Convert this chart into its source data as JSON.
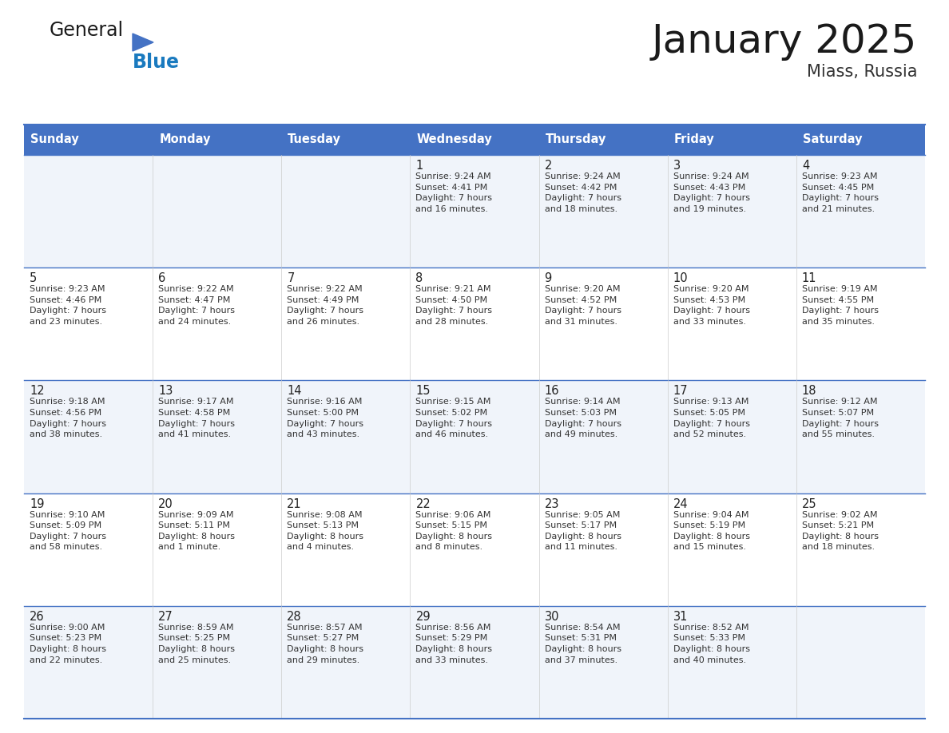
{
  "title": "January 2025",
  "subtitle": "Miass, Russia",
  "header_color": "#4472C4",
  "header_text_color": "#FFFFFF",
  "border_color": "#4472C4",
  "days_of_week": [
    "Sunday",
    "Monday",
    "Tuesday",
    "Wednesday",
    "Thursday",
    "Friday",
    "Saturday"
  ],
  "weeks": [
    [
      {
        "day": "",
        "info": ""
      },
      {
        "day": "",
        "info": ""
      },
      {
        "day": "",
        "info": ""
      },
      {
        "day": "1",
        "info": "Sunrise: 9:24 AM\nSunset: 4:41 PM\nDaylight: 7 hours\nand 16 minutes."
      },
      {
        "day": "2",
        "info": "Sunrise: 9:24 AM\nSunset: 4:42 PM\nDaylight: 7 hours\nand 18 minutes."
      },
      {
        "day": "3",
        "info": "Sunrise: 9:24 AM\nSunset: 4:43 PM\nDaylight: 7 hours\nand 19 minutes."
      },
      {
        "day": "4",
        "info": "Sunrise: 9:23 AM\nSunset: 4:45 PM\nDaylight: 7 hours\nand 21 minutes."
      }
    ],
    [
      {
        "day": "5",
        "info": "Sunrise: 9:23 AM\nSunset: 4:46 PM\nDaylight: 7 hours\nand 23 minutes."
      },
      {
        "day": "6",
        "info": "Sunrise: 9:22 AM\nSunset: 4:47 PM\nDaylight: 7 hours\nand 24 minutes."
      },
      {
        "day": "7",
        "info": "Sunrise: 9:22 AM\nSunset: 4:49 PM\nDaylight: 7 hours\nand 26 minutes."
      },
      {
        "day": "8",
        "info": "Sunrise: 9:21 AM\nSunset: 4:50 PM\nDaylight: 7 hours\nand 28 minutes."
      },
      {
        "day": "9",
        "info": "Sunrise: 9:20 AM\nSunset: 4:52 PM\nDaylight: 7 hours\nand 31 minutes."
      },
      {
        "day": "10",
        "info": "Sunrise: 9:20 AM\nSunset: 4:53 PM\nDaylight: 7 hours\nand 33 minutes."
      },
      {
        "day": "11",
        "info": "Sunrise: 9:19 AM\nSunset: 4:55 PM\nDaylight: 7 hours\nand 35 minutes."
      }
    ],
    [
      {
        "day": "12",
        "info": "Sunrise: 9:18 AM\nSunset: 4:56 PM\nDaylight: 7 hours\nand 38 minutes."
      },
      {
        "day": "13",
        "info": "Sunrise: 9:17 AM\nSunset: 4:58 PM\nDaylight: 7 hours\nand 41 minutes."
      },
      {
        "day": "14",
        "info": "Sunrise: 9:16 AM\nSunset: 5:00 PM\nDaylight: 7 hours\nand 43 minutes."
      },
      {
        "day": "15",
        "info": "Sunrise: 9:15 AM\nSunset: 5:02 PM\nDaylight: 7 hours\nand 46 minutes."
      },
      {
        "day": "16",
        "info": "Sunrise: 9:14 AM\nSunset: 5:03 PM\nDaylight: 7 hours\nand 49 minutes."
      },
      {
        "day": "17",
        "info": "Sunrise: 9:13 AM\nSunset: 5:05 PM\nDaylight: 7 hours\nand 52 minutes."
      },
      {
        "day": "18",
        "info": "Sunrise: 9:12 AM\nSunset: 5:07 PM\nDaylight: 7 hours\nand 55 minutes."
      }
    ],
    [
      {
        "day": "19",
        "info": "Sunrise: 9:10 AM\nSunset: 5:09 PM\nDaylight: 7 hours\nand 58 minutes."
      },
      {
        "day": "20",
        "info": "Sunrise: 9:09 AM\nSunset: 5:11 PM\nDaylight: 8 hours\nand 1 minute."
      },
      {
        "day": "21",
        "info": "Sunrise: 9:08 AM\nSunset: 5:13 PM\nDaylight: 8 hours\nand 4 minutes."
      },
      {
        "day": "22",
        "info": "Sunrise: 9:06 AM\nSunset: 5:15 PM\nDaylight: 8 hours\nand 8 minutes."
      },
      {
        "day": "23",
        "info": "Sunrise: 9:05 AM\nSunset: 5:17 PM\nDaylight: 8 hours\nand 11 minutes."
      },
      {
        "day": "24",
        "info": "Sunrise: 9:04 AM\nSunset: 5:19 PM\nDaylight: 8 hours\nand 15 minutes."
      },
      {
        "day": "25",
        "info": "Sunrise: 9:02 AM\nSunset: 5:21 PM\nDaylight: 8 hours\nand 18 minutes."
      }
    ],
    [
      {
        "day": "26",
        "info": "Sunrise: 9:00 AM\nSunset: 5:23 PM\nDaylight: 8 hours\nand 22 minutes."
      },
      {
        "day": "27",
        "info": "Sunrise: 8:59 AM\nSunset: 5:25 PM\nDaylight: 8 hours\nand 25 minutes."
      },
      {
        "day": "28",
        "info": "Sunrise: 8:57 AM\nSunset: 5:27 PM\nDaylight: 8 hours\nand 29 minutes."
      },
      {
        "day": "29",
        "info": "Sunrise: 8:56 AM\nSunset: 5:29 PM\nDaylight: 8 hours\nand 33 minutes."
      },
      {
        "day": "30",
        "info": "Sunrise: 8:54 AM\nSunset: 5:31 PM\nDaylight: 8 hours\nand 37 minutes."
      },
      {
        "day": "31",
        "info": "Sunrise: 8:52 AM\nSunset: 5:33 PM\nDaylight: 8 hours\nand 40 minutes."
      },
      {
        "day": "",
        "info": ""
      }
    ]
  ],
  "logo_general_color": "#1a1a1a",
  "logo_blue_color": "#1a7abf",
  "logo_triangle_color": "#4472C4",
  "title_color": "#1a1a1a",
  "subtitle_color": "#333333",
  "cell_odd_bg": "#f0f4fa",
  "cell_even_bg": "#ffffff",
  "cell_text_color": "#333333",
  "divider_color": "#4472C4"
}
